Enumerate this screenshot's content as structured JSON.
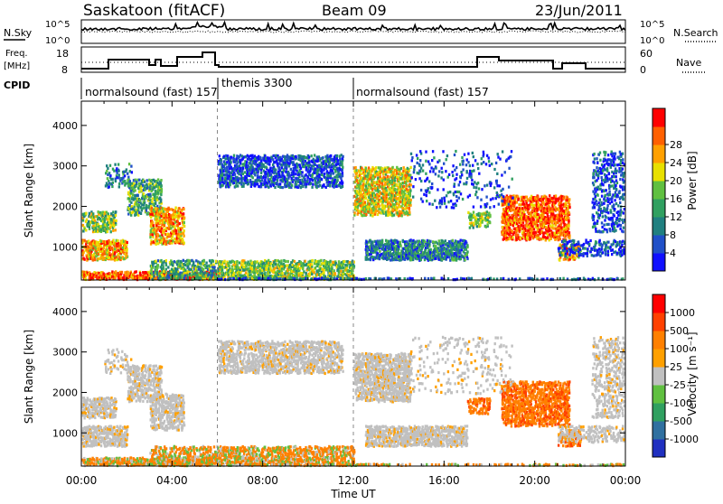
{
  "header": {
    "station": "Saskatoon (fitACF)",
    "beam": "Beam 09",
    "date": "23/Jun/2011"
  },
  "panels": {
    "noise": {
      "left_label": "N.Sky",
      "right_label": "N.Search",
      "left_ticks": [
        "10^5",
        "10^0"
      ],
      "right_ticks": [
        "10^5",
        "10^0"
      ]
    },
    "freq": {
      "left_label_1": "Freq.",
      "left_label_2": "[MHz]",
      "left_ticks": [
        "18",
        "8"
      ],
      "right_label": "Nave",
      "right_ticks": [
        "60",
        "0"
      ]
    },
    "cpid": {
      "label": "CPID",
      "segments": [
        "normalsound (fast) 157",
        "themis 3300",
        "normalsound (fast) 157"
      ]
    }
  },
  "chart_data": [
    {
      "type": "heatmap",
      "name": "power",
      "ylabel": "Slant Range [km]",
      "xlabel": "Time UT",
      "x_ticks": [
        "00:00",
        "04:00",
        "08:00",
        "12:00",
        "16:00",
        "20:00",
        "00:00"
      ],
      "y_ticks": [
        "1000",
        "2000",
        "3000",
        "4000"
      ],
      "xlim_hours": [
        0,
        24
      ],
      "ylim_km": [
        180,
        4600
      ],
      "colorbar": {
        "label": "Power [dB]",
        "ticks": [
          "4",
          "8",
          "12",
          "16",
          "20",
          "24",
          "28"
        ],
        "colors": [
          "#1010ff",
          "#2050c8",
          "#208080",
          "#30a060",
          "#60c040",
          "#e8e000",
          "#ffa000",
          "#ff6000",
          "#ff0000"
        ]
      }
    },
    {
      "type": "heatmap",
      "name": "velocity",
      "ylabel": "Slant Range [km]",
      "xlabel": "Time UT",
      "x_ticks": [
        "00:00",
        "04:00",
        "08:00",
        "12:00",
        "16:00",
        "20:00",
        "00:00"
      ],
      "y_ticks": [
        "1000",
        "2000",
        "3000",
        "4000"
      ],
      "xlim_hours": [
        0,
        24
      ],
      "ylim_km": [
        180,
        4600
      ],
      "colorbar": {
        "label": "Velocity [m s⁻¹]",
        "ticks": [
          "1000",
          "500",
          "100",
          "25",
          "-25",
          "-100",
          "-500",
          "-1000"
        ],
        "colors": [
          "#2030c0",
          "#3070a0",
          "#30a060",
          "#60c040",
          "#c0c0c0",
          "#ffa000",
          "#ff8000",
          "#ff4000",
          "#ff0000"
        ]
      }
    }
  ]
}
